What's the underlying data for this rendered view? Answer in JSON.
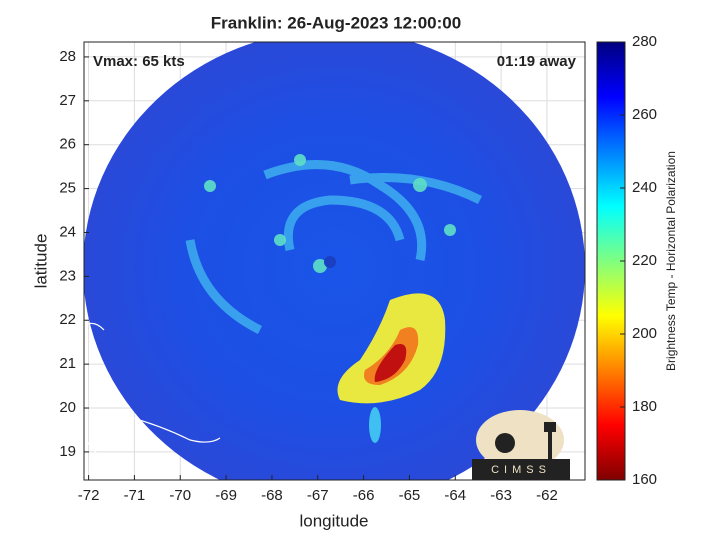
{
  "title": "Franklin: 26-Aug-2023 12:00:00",
  "annotations": {
    "vmax": "Vmax: 65 kts",
    "time_away": "01:19 away"
  },
  "axes": {
    "xlabel": "longitude",
    "ylabel": "latitude",
    "xlim": [
      -72.1,
      -61.17
    ],
    "ylim": [
      18.36,
      28.34
    ],
    "xticks": [
      -72,
      -71,
      -70,
      -69,
      -68,
      -67,
      -66,
      -65,
      -64,
      -63,
      -62
    ],
    "yticks": [
      19,
      20,
      21,
      22,
      23,
      24,
      25,
      26,
      27,
      28
    ],
    "grid": true
  },
  "colorbar": {
    "label": "Brightness Temp - Horizontal Polarization",
    "lim": [
      160,
      280
    ],
    "ticks": [
      160,
      180,
      200,
      220,
      240,
      260,
      280
    ],
    "colormap": [
      "#7f0000",
      "#ff0000",
      "#ff8000",
      "#ffff00",
      "#80ff80",
      "#00ffff",
      "#0080ff",
      "#0000ff",
      "#000080"
    ]
  },
  "logo": "CIMSS"
}
